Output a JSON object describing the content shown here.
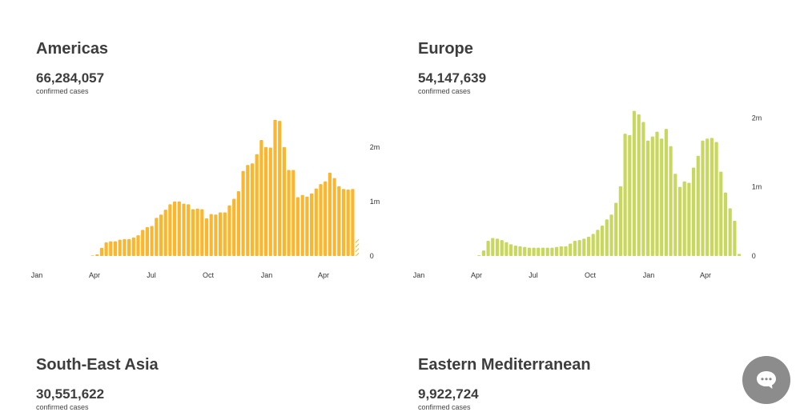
{
  "panels": [
    {
      "region": "Americas",
      "count": "66,284,057",
      "sub": "confirmed cases"
    },
    {
      "region": "Europe",
      "count": "54,147,639",
      "sub": "confirmed cases"
    },
    {
      "region": "South-East Asia",
      "count": "30,551,622",
      "sub": "confirmed cases"
    },
    {
      "region": "Eastern Mediterranean",
      "count": "9,922,724",
      "sub": "confirmed cases"
    }
  ],
  "chart_data": [
    {
      "type": "bar",
      "title": "Americas",
      "x_ticks": [
        "Jan",
        "Apr",
        "Jul",
        "Oct",
        "Jan",
        "Apr"
      ],
      "y_ticks": [
        "0",
        "1m",
        "2m"
      ],
      "ylim": [
        0,
        2600000
      ],
      "color": "#fbb62e",
      "last_bar_partial": true,
      "values": [
        0,
        0,
        0,
        0,
        0,
        0,
        0,
        0,
        0,
        0,
        0,
        0,
        10000,
        30000,
        150000,
        250000,
        270000,
        270000,
        300000,
        310000,
        310000,
        340000,
        380000,
        480000,
        530000,
        550000,
        700000,
        760000,
        850000,
        950000,
        1000000,
        1000000,
        960000,
        950000,
        860000,
        870000,
        860000,
        690000,
        770000,
        760000,
        800000,
        800000,
        930000,
        1050000,
        1190000,
        1560000,
        1670000,
        1700000,
        1870000,
        2130000,
        2000000,
        1990000,
        2500000,
        2480000,
        2000000,
        1580000,
        1580000,
        1080000,
        1120000,
        1090000,
        1150000,
        1240000,
        1320000,
        1370000,
        1530000,
        1430000,
        1280000,
        1230000,
        1220000,
        1230000,
        320000
      ]
    },
    {
      "type": "bar",
      "title": "Europe",
      "x_ticks": [
        "Jan",
        "Apr",
        "Jul",
        "Oct",
        "Jan",
        "Apr"
      ],
      "y_ticks": [
        "0",
        "1m",
        "2m"
      ],
      "ylim": [
        0,
        2050000
      ],
      "color": "#c8d85e",
      "values": [
        0,
        0,
        0,
        0,
        0,
        0,
        0,
        0,
        0,
        0,
        0,
        0,
        0,
        10000,
        80000,
        220000,
        260000,
        250000,
        230000,
        200000,
        170000,
        150000,
        140000,
        130000,
        120000,
        120000,
        120000,
        120000,
        120000,
        120000,
        130000,
        140000,
        140000,
        180000,
        220000,
        230000,
        250000,
        280000,
        320000,
        380000,
        440000,
        530000,
        600000,
        770000,
        1010000,
        1770000,
        1750000,
        2100000,
        2050000,
        1940000,
        1670000,
        1730000,
        1800000,
        1700000,
        1840000,
        1590000,
        1190000,
        1000000,
        1080000,
        1060000,
        1280000,
        1450000,
        1670000,
        1700000,
        1710000,
        1650000,
        1220000,
        920000,
        690000,
        510000,
        30000
      ]
    },
    {
      "type": "bar",
      "title": "South-East Asia"
    },
    {
      "type": "bar",
      "title": "Eastern Mediterranean"
    }
  ]
}
